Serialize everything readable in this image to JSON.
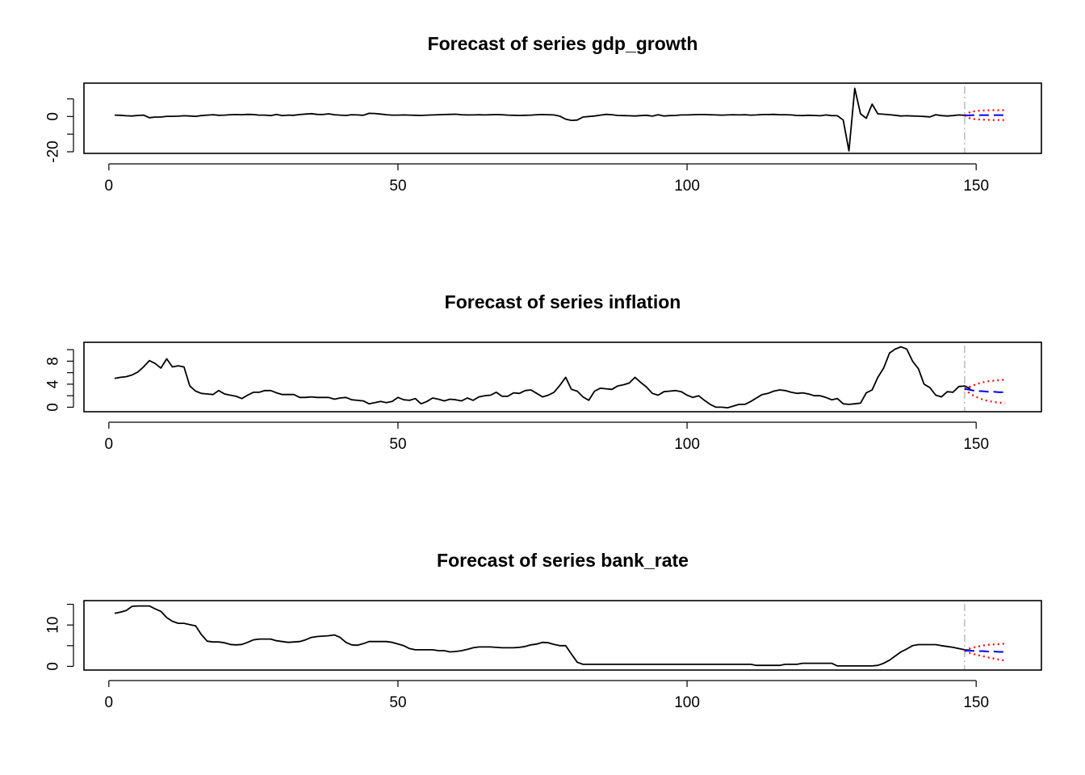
{
  "colors": {
    "history": "#000000",
    "forecast": "#0000ff",
    "interval": "#ff0000",
    "divider": "#bebebe"
  },
  "chart_data": [
    {
      "type": "line",
      "title": "Forecast of series gdp_growth",
      "xlim": [
        1,
        155
      ],
      "ylim": [
        -20,
        18
      ],
      "xticks": [
        0,
        50,
        100,
        150
      ],
      "yticks": [
        -20,
        -10,
        0,
        10
      ],
      "ytick_labels": [
        "-20",
        "",
        "0",
        ""
      ],
      "forecast_origin": 148,
      "history": {
        "x_start": 1,
        "values": [
          0.8,
          0.7,
          0.4,
          0.3,
          0.6,
          0.8,
          -0.7,
          -0.3,
          -0.3,
          0.1,
          0.1,
          0.2,
          0.4,
          0.3,
          0.1,
          0.5,
          0.8,
          1.0,
          0.7,
          0.8,
          1.0,
          1.1,
          1.0,
          1.2,
          1.1,
          0.8,
          0.8,
          0.5,
          1.2,
          0.5,
          0.8,
          0.7,
          1.1,
          1.4,
          1.6,
          1.2,
          1.1,
          1.5,
          1.0,
          0.8,
          0.6,
          1.0,
          0.9,
          0.7,
          1.8,
          1.7,
          1.4,
          1.0,
          0.8,
          0.8,
          0.9,
          0.8,
          0.7,
          0.6,
          0.8,
          0.9,
          1.0,
          1.1,
          1.2,
          1.3,
          1.0,
          0.9,
          0.9,
          1.0,
          0.9,
          1.0,
          1.1,
          1.0,
          0.8,
          0.7,
          0.6,
          0.7,
          0.8,
          1.0,
          1.1,
          1.0,
          0.9,
          0.2,
          -1.5,
          -2.2,
          -2.0,
          -0.3,
          0.0,
          0.3,
          0.8,
          1.2,
          1.0,
          0.6,
          0.5,
          0.4,
          0.3,
          0.5,
          0.7,
          0.2,
          1.0,
          0.3,
          0.5,
          0.6,
          0.9,
          0.9,
          1.0,
          1.1,
          1.1,
          1.0,
          0.9,
          0.8,
          0.9,
          1.0,
          0.9,
          1.0,
          0.8,
          0.9,
          1.1,
          1.1,
          1.2,
          1.0,
          1.0,
          0.9,
          0.6,
          0.5,
          0.7,
          0.6,
          0.4,
          0.9,
          0.5,
          0.4,
          -2.0,
          -19.5,
          16.0,
          1.5,
          -1.0,
          7.0,
          1.5,
          1.3,
          1.0,
          0.7,
          0.3,
          0.4,
          0.3,
          0.2,
          0.0,
          -0.2,
          1.0,
          0.5,
          0.3,
          0.5,
          0.9,
          0.7,
          0.6
        ]
      },
      "forecast": {
        "x_start": 148,
        "values": [
          0.6,
          0.7,
          0.8,
          0.8,
          0.8,
          0.8,
          0.8,
          0.8
        ]
      },
      "upper": {
        "x_start": 148,
        "values": [
          0.6,
          2.6,
          3.1,
          3.4,
          3.5,
          3.6,
          3.6,
          3.6
        ]
      },
      "lower": {
        "x_start": 148,
        "values": [
          0.6,
          -1.2,
          -1.6,
          -1.8,
          -1.9,
          -2.0,
          -2.0,
          -2.0
        ]
      }
    },
    {
      "type": "line",
      "title": "Forecast of series inflation",
      "xlim": [
        1,
        155
      ],
      "ylim": [
        -0.5,
        11
      ],
      "xticks": [
        0,
        50,
        100,
        150
      ],
      "yticks": [
        0,
        2,
        4,
        6,
        8,
        10
      ],
      "ytick_labels": [
        "0",
        "",
        "4",
        "",
        "8",
        ""
      ],
      "forecast_origin": 148,
      "history": {
        "x_start": 1,
        "values": [
          5.0,
          5.2,
          5.3,
          5.6,
          6.1,
          7.0,
          8.1,
          7.6,
          6.8,
          8.4,
          7.0,
          7.2,
          7.0,
          3.7,
          2.8,
          2.4,
          2.3,
          2.2,
          2.9,
          2.3,
          2.1,
          1.9,
          1.5,
          2.1,
          2.6,
          2.6,
          2.9,
          2.9,
          2.5,
          2.2,
          2.2,
          2.2,
          1.7,
          1.7,
          1.8,
          1.7,
          1.7,
          1.7,
          1.4,
          1.6,
          1.7,
          1.3,
          1.2,
          1.1,
          0.6,
          0.8,
          1.0,
          0.8,
          1.0,
          1.7,
          1.3,
          1.2,
          1.5,
          0.6,
          1.0,
          1.6,
          1.4,
          1.1,
          1.4,
          1.3,
          1.1,
          1.6,
          1.2,
          1.8,
          2.0,
          2.1,
          2.6,
          1.9,
          1.9,
          2.5,
          2.4,
          2.9,
          3.0,
          2.4,
          1.8,
          2.1,
          2.6,
          3.8,
          5.2,
          3.1,
          2.8,
          1.8,
          1.2,
          2.8,
          3.3,
          3.2,
          3.1,
          3.7,
          3.9,
          4.2,
          5.2,
          4.3,
          3.5,
          2.4,
          2.1,
          2.7,
          2.8,
          2.9,
          2.7,
          2.1,
          1.7,
          2.0,
          1.2,
          0.5,
          0.0,
          0.0,
          -0.1,
          0.2,
          0.5,
          0.5,
          1.0,
          1.6,
          2.2,
          2.4,
          2.8,
          3.0,
          2.9,
          2.6,
          2.4,
          2.5,
          2.3,
          2.0,
          2.0,
          1.7,
          1.3,
          1.5,
          0.6,
          0.5,
          0.6,
          0.7,
          2.5,
          3.0,
          5.2,
          6.8,
          9.4,
          10.1,
          10.5,
          10.1,
          8.0,
          6.7,
          4.0,
          3.4,
          2.1,
          1.8,
          2.7,
          2.6,
          3.6,
          3.7,
          3.2
        ]
      },
      "forecast": {
        "x_start": 148,
        "values": [
          3.2,
          3.0,
          2.8,
          2.8,
          2.7,
          2.7,
          2.6,
          2.6
        ]
      },
      "upper": {
        "x_start": 148,
        "values": [
          3.2,
          3.6,
          4.0,
          4.3,
          4.5,
          4.6,
          4.7,
          4.8
        ]
      },
      "lower": {
        "x_start": 148,
        "values": [
          3.2,
          2.3,
          1.8,
          1.4,
          1.1,
          0.9,
          0.8,
          0.7
        ]
      }
    },
    {
      "type": "line",
      "title": "Forecast of series bank_rate",
      "xlim": [
        1,
        155
      ],
      "ylim": [
        -0.5,
        15.5
      ],
      "xticks": [
        0,
        50,
        100,
        150
      ],
      "yticks": [
        0,
        5,
        10,
        15
      ],
      "ytick_labels": [
        "0",
        "",
        "10",
        ""
      ],
      "forecast_origin": 148,
      "history": {
        "x_start": 1,
        "values": [
          12.8,
          13.1,
          13.5,
          14.5,
          14.6,
          14.6,
          14.6,
          13.9,
          13.3,
          11.8,
          10.9,
          10.4,
          10.4,
          10.1,
          9.8,
          7.7,
          6.1,
          5.9,
          5.9,
          5.7,
          5.3,
          5.2,
          5.3,
          5.8,
          6.4,
          6.6,
          6.6,
          6.6,
          6.2,
          6.0,
          5.8,
          5.9,
          6.0,
          6.4,
          7.0,
          7.2,
          7.3,
          7.4,
          7.6,
          7.0,
          5.8,
          5.2,
          5.1,
          5.5,
          6.0,
          6.0,
          6.0,
          6.0,
          5.8,
          5.4,
          5.0,
          4.3,
          4.0,
          4.0,
          4.0,
          4.0,
          3.8,
          3.8,
          3.5,
          3.6,
          3.8,
          4.1,
          4.5,
          4.7,
          4.7,
          4.7,
          4.6,
          4.5,
          4.5,
          4.5,
          4.6,
          4.8,
          5.2,
          5.4,
          5.8,
          5.7,
          5.3,
          5.0,
          5.0,
          3.0,
          1.0,
          0.5,
          0.5,
          0.5,
          0.5,
          0.5,
          0.5,
          0.5,
          0.5,
          0.5,
          0.5,
          0.5,
          0.5,
          0.5,
          0.5,
          0.5,
          0.5,
          0.5,
          0.5,
          0.5,
          0.5,
          0.5,
          0.5,
          0.5,
          0.5,
          0.5,
          0.5,
          0.5,
          0.5,
          0.5,
          0.5,
          0.25,
          0.25,
          0.25,
          0.25,
          0.25,
          0.5,
          0.5,
          0.5,
          0.75,
          0.75,
          0.75,
          0.75,
          0.75,
          0.75,
          0.1,
          0.1,
          0.1,
          0.1,
          0.1,
          0.1,
          0.1,
          0.25,
          0.75,
          1.5,
          2.5,
          3.5,
          4.2,
          5.0,
          5.25,
          5.25,
          5.25,
          5.25,
          5.0,
          4.8,
          4.6,
          4.3,
          4.0,
          3.9
        ]
      },
      "forecast": {
        "x_start": 148,
        "values": [
          3.8,
          3.8,
          3.7,
          3.7,
          3.6,
          3.6,
          3.5,
          3.5
        ]
      },
      "upper": {
        "x_start": 148,
        "values": [
          3.8,
          4.4,
          4.7,
          5.0,
          5.2,
          5.3,
          5.4,
          5.5
        ]
      },
      "lower": {
        "x_start": 148,
        "values": [
          3.8,
          3.2,
          2.8,
          2.5,
          2.2,
          1.9,
          1.6,
          1.4
        ]
      }
    }
  ]
}
